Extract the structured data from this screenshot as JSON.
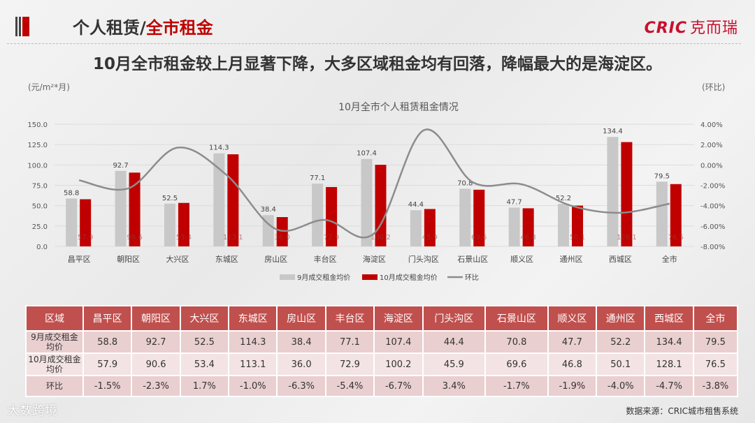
{
  "header": {
    "title_prefix": "个人租赁/",
    "title_highlight": "全市租金",
    "logo_text": "CRIC",
    "logo_cn": "克而瑞"
  },
  "headline": "10月全市租金较上月显著下降，大多区域租金均有回落，降幅最大的是海淀区。",
  "watermark": "大数跨境",
  "source": "数据来源：CRIC城市租售系统",
  "colors": {
    "sep": "#c8c8c8",
    "oct": "#c00000",
    "mom": "#8c8c8c",
    "table_header": "#c0504d"
  },
  "chart_data": {
    "type": "bar+line",
    "title": "10月全市个人租赁租金情况",
    "ylabel_left": "(元/m²*月)",
    "ylabel_right": "(环比)",
    "categories": [
      "昌平区",
      "朝阳区",
      "大兴区",
      "东城区",
      "房山区",
      "丰台区",
      "海淀区",
      "门头沟区",
      "石景山区",
      "顺义区",
      "通州区",
      "西城区",
      "全市"
    ],
    "series": [
      {
        "name": "9月成交租金均价",
        "type": "bar",
        "axis": "left",
        "values": [
          58.8,
          92.7,
          52.5,
          114.3,
          38.4,
          77.1,
          107.4,
          44.4,
          70.8,
          47.7,
          52.2,
          134.4,
          79.5
        ]
      },
      {
        "name": "10月成交租金均价",
        "type": "bar",
        "axis": "left",
        "values": [
          57.9,
          90.6,
          53.4,
          113.1,
          36.0,
          72.9,
          100.2,
          45.9,
          69.6,
          46.8,
          50.1,
          128.1,
          76.5
        ]
      },
      {
        "name": "环比",
        "type": "line",
        "axis": "right",
        "smooth": true,
        "values": [
          -1.5,
          -2.3,
          1.7,
          -1.0,
          -6.3,
          -5.4,
          -6.7,
          3.4,
          -1.7,
          -1.9,
          -4.0,
          -4.7,
          -3.8
        ]
      }
    ],
    "ylim_left": [
      0,
      150
    ],
    "yticks_left": [
      "0.0",
      "25.0",
      "50.0",
      "75.0",
      "100.0",
      "125.0",
      "150.0"
    ],
    "ylim_right": [
      -8,
      4
    ],
    "yticks_right": [
      "-8.00%",
      "-6.00%",
      "-4.00%",
      "-2.00%",
      "0.00%",
      "2.00%",
      "4.00%"
    ],
    "grid": true,
    "legend": "bottom"
  },
  "table": {
    "headers": [
      "区域",
      "昌平区",
      "朝阳区",
      "大兴区",
      "东城区",
      "房山区",
      "丰台区",
      "海淀区",
      "门头沟区",
      "石景山区",
      "顺义区",
      "通州区",
      "西城区",
      "全市"
    ],
    "rows": [
      [
        "9月成交租金均价",
        "58.8",
        "92.7",
        "52.5",
        "114.3",
        "38.4",
        "77.1",
        "107.4",
        "44.4",
        "70.8",
        "47.7",
        "52.2",
        "134.4",
        "79.5"
      ],
      [
        "10月成交租金均价",
        "57.9",
        "90.6",
        "53.4",
        "113.1",
        "36.0",
        "72.9",
        "100.2",
        "45.9",
        "69.6",
        "46.8",
        "50.1",
        "128.1",
        "76.5"
      ],
      [
        "环比",
        "-1.5%",
        "-2.3%",
        "1.7%",
        "-1.0%",
        "-6.3%",
        "-5.4%",
        "-6.7%",
        "3.4%",
        "-1.7%",
        "-1.9%",
        "-4.0%",
        "-4.7%",
        "-3.8%"
      ]
    ]
  }
}
